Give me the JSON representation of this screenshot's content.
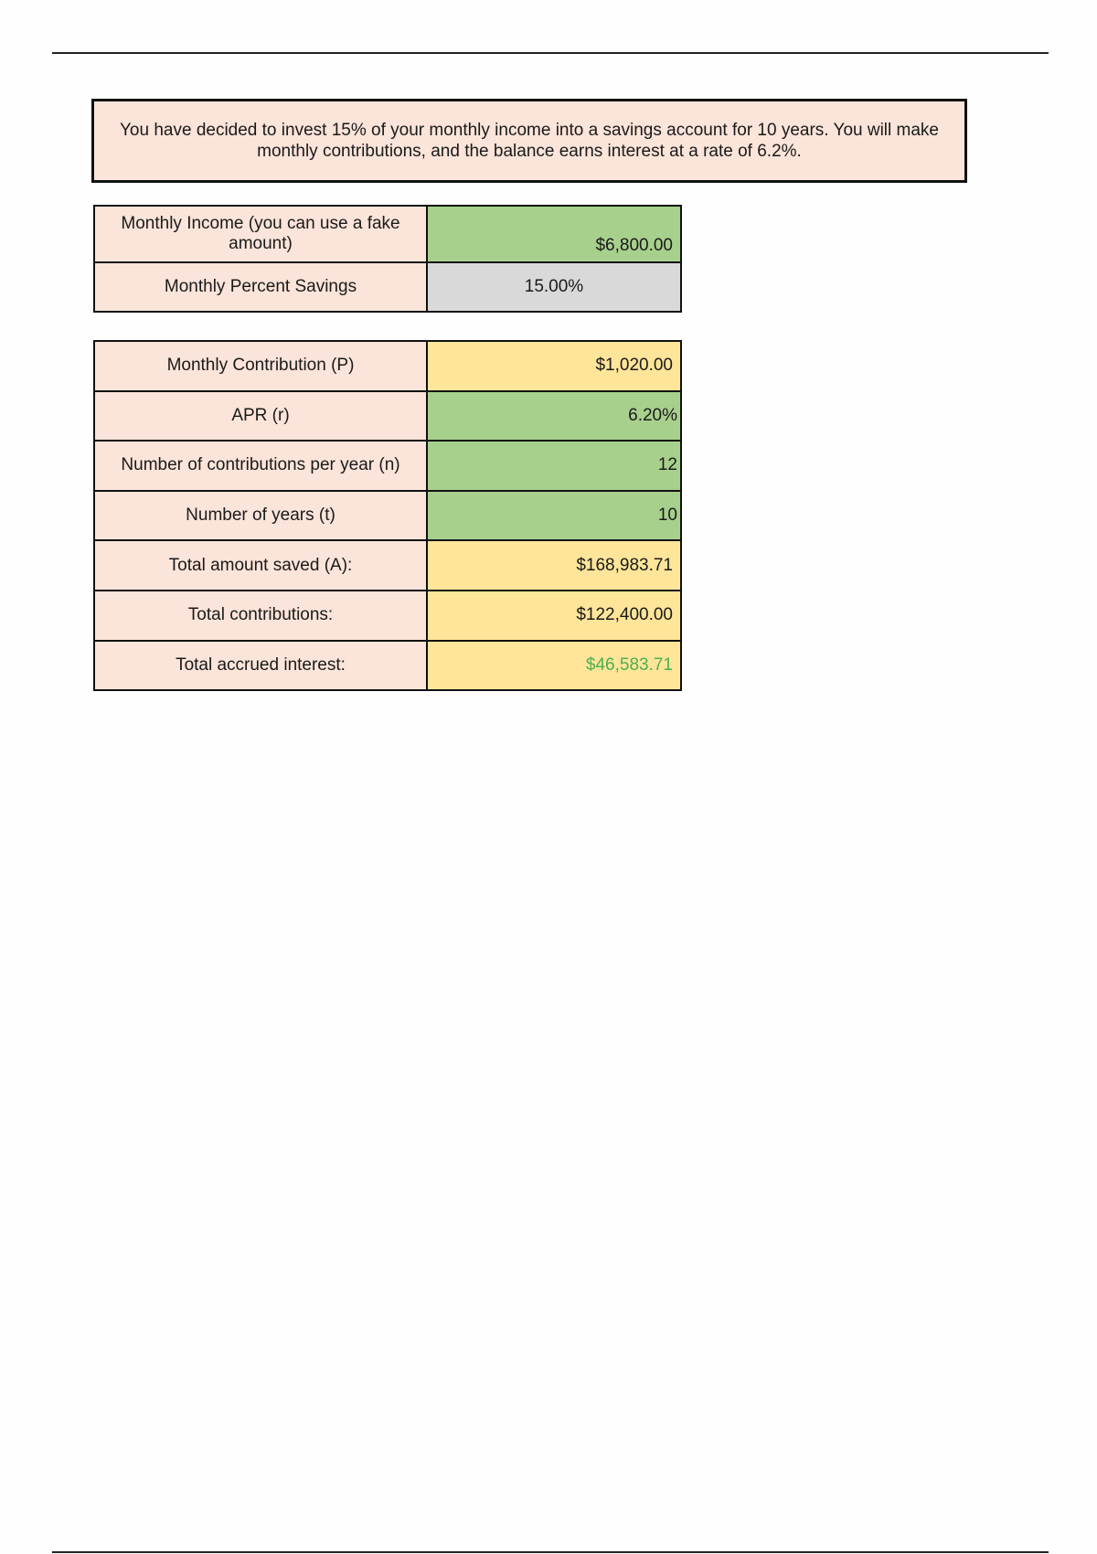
{
  "prompt": "You have decided to invest 15% of your monthly income into a savings account for 10 years. You will make monthly contributions, and the balance earns interest at a rate of 6.2%.",
  "inputs": [
    {
      "label": "Monthly Income (you can use a fake amount)",
      "value": "$6,800.00"
    },
    {
      "label": "Monthly Percent Savings",
      "value": "15.00%"
    }
  ],
  "results": [
    {
      "label": "Monthly Contribution (P)",
      "value": "$1,020.00"
    },
    {
      "label": "APR (r)",
      "value": "6.20%"
    },
    {
      "label": "Number of contributions per year (n)",
      "value": "12"
    },
    {
      "label": "Number of years (t)",
      "value": "10"
    },
    {
      "label": "Total amount saved (A):",
      "value": "$168,983.71"
    },
    {
      "label": "Total contributions:",
      "value": "$122,400.00"
    },
    {
      "label": "Total accrued interest:",
      "value": "$46,583.71"
    }
  ],
  "colors": {
    "label_fill": "#fbe4d9",
    "input_fill": "#a8d08d",
    "computed_fill": "#ffe599",
    "percent_fill": "#d9d9d9",
    "interest_text": "#4caf50"
  }
}
